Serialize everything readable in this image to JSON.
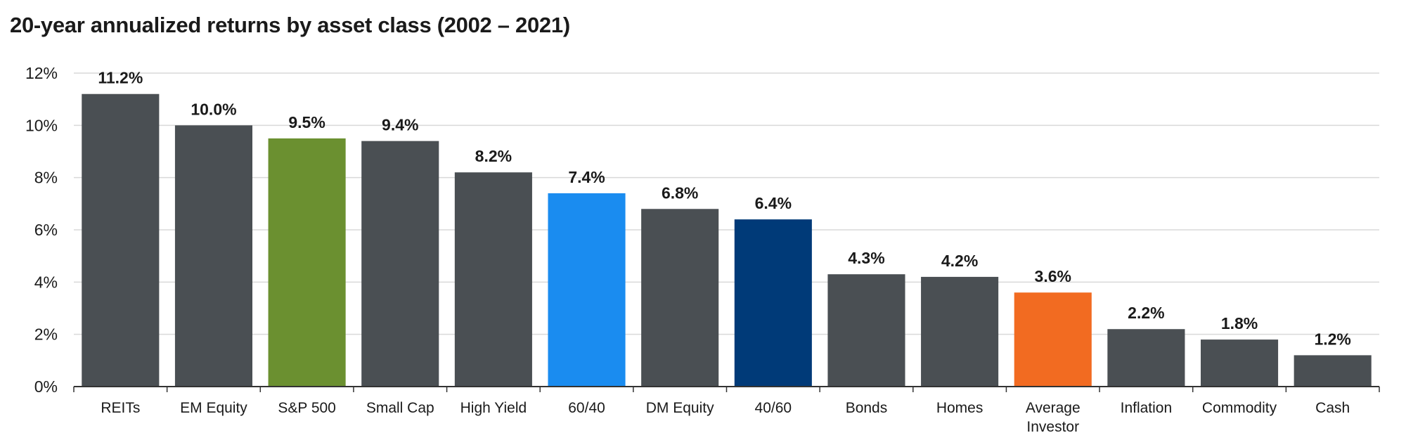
{
  "chart_data": {
    "type": "bar",
    "title": "20-year annualized returns by asset class (2002 – 2021)",
    "categories": [
      "REITs",
      "EM Equity",
      "S&P 500",
      "Small Cap",
      "High Yield",
      "60/40",
      "DM Equity",
      "40/60",
      "Bonds",
      "Homes",
      "Average Investor",
      "Inflation",
      "Commodity",
      "Cash"
    ],
    "category_lines": [
      [
        "REITs"
      ],
      [
        "EM Equity"
      ],
      [
        "S&P 500"
      ],
      [
        "Small Cap"
      ],
      [
        "High Yield"
      ],
      [
        "60/40"
      ],
      [
        "DM Equity"
      ],
      [
        "40/60"
      ],
      [
        "Bonds"
      ],
      [
        "Homes"
      ],
      [
        "Average",
        "Investor"
      ],
      [
        "Inflation"
      ],
      [
        "Commodity"
      ],
      [
        "Cash"
      ]
    ],
    "values": [
      11.2,
      10.0,
      9.5,
      9.4,
      8.2,
      7.4,
      6.8,
      6.4,
      4.3,
      4.2,
      3.6,
      2.2,
      1.8,
      1.2
    ],
    "value_labels": [
      "11.2%",
      "10.0%",
      "9.5%",
      "9.4%",
      "8.2%",
      "7.4%",
      "6.8%",
      "6.4%",
      "4.3%",
      "4.2%",
      "3.6%",
      "2.2%",
      "1.8%",
      "1.2%"
    ],
    "bar_colors": [
      "#4a4f53",
      "#4a4f53",
      "#6b9030",
      "#4a4f53",
      "#4a4f53",
      "#1a8cf0",
      "#4a4f53",
      "#003a78",
      "#4a4f53",
      "#4a4f53",
      "#f26b21",
      "#4a4f53",
      "#4a4f53",
      "#4a4f53"
    ],
    "y_ticks": [
      0,
      2,
      4,
      6,
      8,
      10,
      12
    ],
    "y_tick_labels": [
      "0%",
      "2%",
      "4%",
      "6%",
      "8%",
      "10%",
      "12%"
    ],
    "ylim": [
      0,
      12
    ],
    "xlabel": "",
    "ylabel": "",
    "grid": true,
    "legend": "none"
  },
  "colors": {
    "gridline": "#d9d9d9",
    "axis": "#333333",
    "text": "#1a1a1a"
  }
}
